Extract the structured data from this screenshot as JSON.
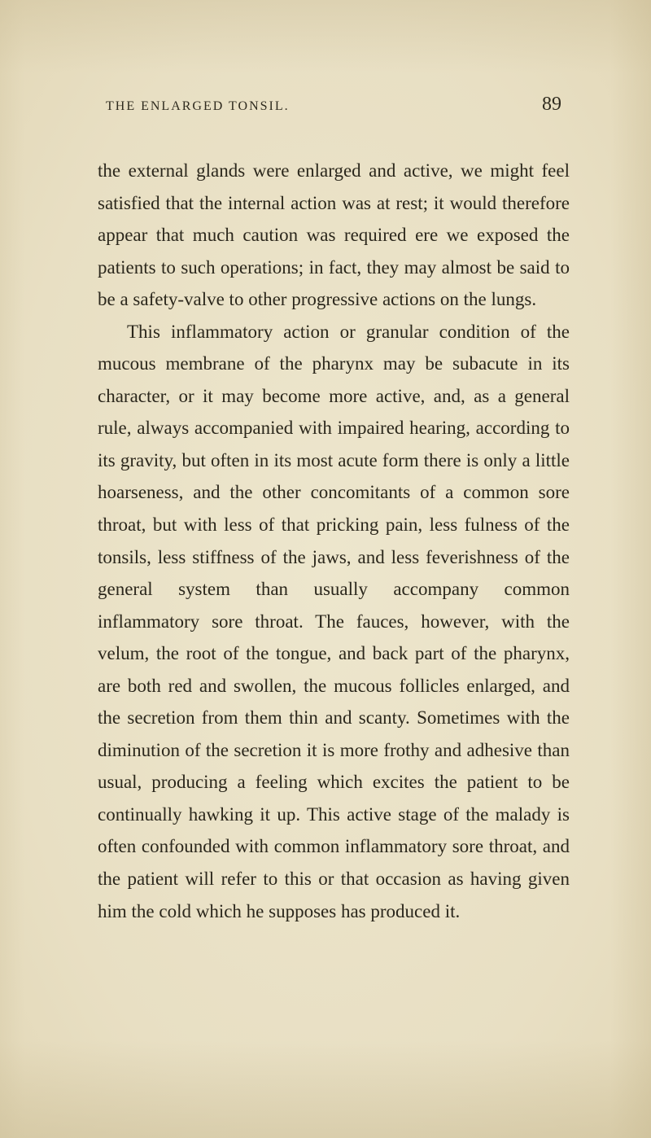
{
  "page": {
    "running_title": "THE ENLARGED TONSIL.",
    "page_number": "89",
    "background_color": "#ebe3c9",
    "text_color": "#2b271c",
    "body_fontsize": 23,
    "line_height": 1.72,
    "header_fontsize": 16,
    "pagenum_fontsize": 24,
    "paragraphs": [
      {
        "indent": false,
        "text": "the external glands were enlarged and active, we might feel satisfied that the internal action was at rest; it would therefore appear that much caution was required ere we exposed the patients to such operations; in fact, they may almost be said to be a safety-valve to other progressive actions on the lungs."
      },
      {
        "indent": true,
        "text": "This inflammatory action or granular condition of the mucous membrane of the pharynx may be subacute in its character, or it may become more active, and, as a general rule, always accompanied with impaired hearing, according to its gravity, but often in its most acute form there is only a little hoarseness, and the other concomitants of a common sore throat, but with less of that pricking pain, less fulness of the tonsils, less stiffness of the jaws, and less feverishness of the general system than usually accompany common inflammatory sore throat. The fauces, however, with the velum, the root of the tongue, and back part of the pharynx, are both red and swollen, the mucous follicles enlarged, and the secretion from them thin and scanty. Sometimes with the diminution of the secretion it is more frothy and adhesive than usual, producing a feeling which excites the patient to be continually hawking it up. This active stage of the malady is often confounded with common inflammatory sore throat, and the patient will refer to this or that occasion as having given him the cold which he supposes has produced it."
      }
    ]
  }
}
